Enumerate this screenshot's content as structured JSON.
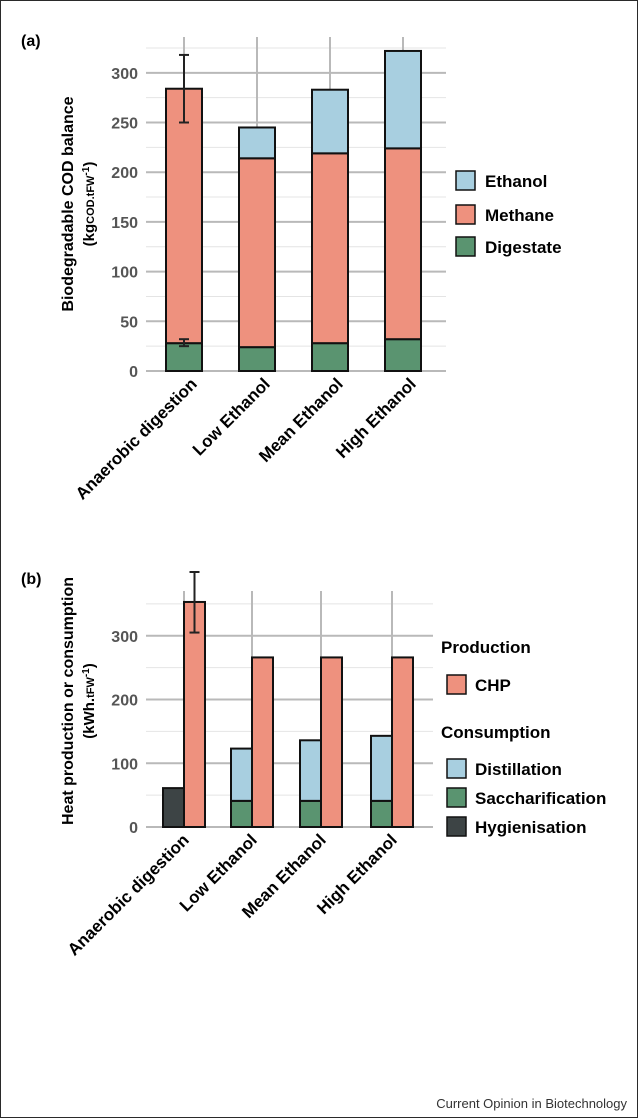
{
  "footer": "Current Opinion in Biotechnology",
  "colors": {
    "ethanol": "#a8cfe0",
    "methane": "#ee917e",
    "digestate": "#5a9470",
    "chp": "#ee917e",
    "distillation": "#a8cfe0",
    "saccharification": "#5a9470",
    "hygienisation": "#3d4445",
    "grid": "#b9b9b9",
    "text": "#000000",
    "axis_text": "#555555"
  },
  "chart_data": [
    {
      "panel_label": "(a)",
      "type": "bar",
      "stacked": true,
      "ylabel_line1": "Biodegradable COD balance",
      "ylabel_line2": "(kgCOD.tFW-1)",
      "categories": [
        "Anaerobic digestion",
        "Low Ethanol",
        "Mean Ethanol",
        "High Ethanol"
      ],
      "series": [
        {
          "name": "Digestate",
          "values": [
            28,
            24,
            28,
            32
          ]
        },
        {
          "name": "Methane",
          "values": [
            256,
            190,
            191,
            192
          ]
        },
        {
          "name": "Ethanol",
          "values": [
            0,
            31,
            64,
            98
          ]
        }
      ],
      "error_bars": [
        {
          "category": "Anaerobic digestion",
          "center": 284,
          "low": 250,
          "high": 318
        },
        {
          "category": "Anaerobic digestion",
          "center": 28,
          "low": 25,
          "high": 32
        }
      ],
      "ylim": [
        0,
        330
      ],
      "yticks": [
        0,
        50,
        100,
        150,
        200,
        250,
        300
      ],
      "legend": [
        "Ethanol",
        "Methane",
        "Digestate"
      ],
      "legend_position": "right",
      "grid": true
    },
    {
      "panel_label": "(b)",
      "type": "bar",
      "stacked": true,
      "grouped": true,
      "ylabel_line1": "Heat production or consumption",
      "ylabel_line2": "(kWh.tFW-1)",
      "categories": [
        "Anaerobic digestion",
        "Low Ethanol",
        "Mean Ethanol",
        "High Ethanol"
      ],
      "consumption": {
        "Hygienisation": [
          61,
          0,
          0,
          0
        ],
        "Saccharification": [
          0,
          41,
          41,
          41
        ],
        "Distillation": [
          0,
          82,
          95,
          102
        ]
      },
      "production": {
        "CHP": [
          353,
          266,
          266,
          266
        ]
      },
      "error_bars": [
        {
          "category": "Anaerobic digestion",
          "center": 353,
          "low": 305,
          "high": 400
        }
      ],
      "ylim": [
        0,
        400
      ],
      "yticks": [
        0,
        100,
        200,
        300
      ],
      "legend_groups": [
        {
          "title": "Production",
          "items": [
            "CHP"
          ]
        },
        {
          "title": "Consumption",
          "items": [
            "Distillation",
            "Saccharification",
            "Hygienisation"
          ]
        }
      ],
      "legend_position": "right",
      "grid": true
    }
  ]
}
